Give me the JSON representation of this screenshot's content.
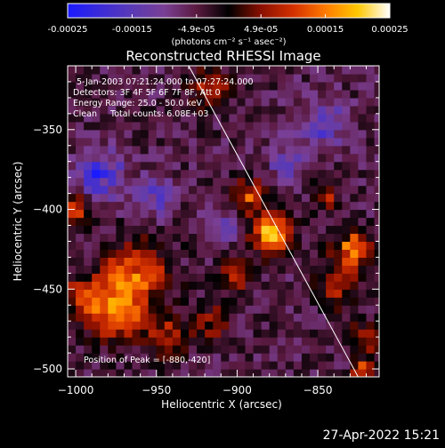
{
  "colorbar": {
    "tick_labels": [
      "-0.00025",
      "-0.00015",
      "-4.9e-05",
      "4.9e-05",
      "0.00015",
      "0.00025"
    ],
    "units": "(photons cm⁻² s⁻¹ asec⁻²)",
    "colors": [
      "#1a1aff",
      "#3b2bd8",
      "#5a3ab5",
      "#7a3f94",
      "#5a1a40",
      "#000000",
      "#8a1000",
      "#d43000",
      "#ff7a00",
      "#ffc800",
      "#ffffff"
    ]
  },
  "annotations": {
    "line1": "5-Jan-2003 07:21:24.000 to 07:27:24.000",
    "line2": "Detectors: 3F 4F 5F 6F 7F 8F, Att 0",
    "line3": "Energy Range: 25.0 - 50.0 keV",
    "line4": "Clean     Total counts: 6.08E+03",
    "peak": "Position of Peak = [-880,-420]"
  },
  "timestamp": "27-Apr-2022 15:21",
  "chart_data": {
    "type": "heatmap",
    "title": "Reconstructed RHESSI Image",
    "xlabel": "Heliocentric X (arcsec)",
    "ylabel": "Heliocentric Y (arcsec)",
    "xlim": [
      -1005,
      -812
    ],
    "ylim": [
      -505,
      -310
    ],
    "x_ticks": [
      -1000,
      -950,
      -900,
      -850
    ],
    "y_ticks": [
      -350,
      -400,
      -450,
      -500
    ],
    "x_tick_labels": [
      "−1000",
      "−950",
      "−900",
      "−850"
    ],
    "y_tick_labels": [
      "−350",
      "−400",
      "−450",
      "−500"
    ],
    "value_range": [
      -0.00025,
      0.00025
    ],
    "grid": false,
    "limb_line": [
      [
        -930,
        -310
      ],
      [
        -825,
        -505
      ]
    ],
    "peak_position": [
      -880,
      -420
    ],
    "bright_regions": [
      {
        "x": -878,
        "y": -415,
        "peak": 0.00025,
        "radius": 12
      },
      {
        "x": -892,
        "y": -392,
        "peak": 0.00018,
        "radius": 10
      },
      {
        "x": -900,
        "y": -440,
        "peak": 0.00015,
        "radius": 10
      },
      {
        "x": -963,
        "y": -440,
        "peak": 0.00018,
        "radius": 20
      },
      {
        "x": -975,
        "y": -465,
        "peak": 0.00016,
        "radius": 18
      },
      {
        "x": -995,
        "y": -455,
        "peak": 0.00013,
        "radius": 14
      },
      {
        "x": -943,
        "y": -480,
        "peak": 0.00012,
        "radius": 13
      },
      {
        "x": -915,
        "y": -470,
        "peak": 0.0001,
        "radius": 12
      },
      {
        "x": -828,
        "y": -425,
        "peak": 0.00018,
        "radius": 12
      },
      {
        "x": -838,
        "y": -448,
        "peak": 0.00014,
        "radius": 12
      },
      {
        "x": -820,
        "y": -480,
        "peak": 0.00013,
        "radius": 10
      },
      {
        "x": -822,
        "y": -500,
        "peak": 0.0002,
        "radius": 6
      },
      {
        "x": -918,
        "y": -322,
        "peak": 0.00012,
        "radius": 14
      },
      {
        "x": -1002,
        "y": -400,
        "peak": 0.00015,
        "radius": 10
      },
      {
        "x": -845,
        "y": -392,
        "peak": 0.00011,
        "radius": 8
      },
      {
        "x": -855,
        "y": -340,
        "peak": 8e-05,
        "radius": 8
      }
    ],
    "dark_regions": [
      {
        "x": -985,
        "y": -378,
        "peak": -0.00015,
        "radius": 14
      },
      {
        "x": -850,
        "y": -345,
        "peak": -0.00012,
        "radius": 16
      },
      {
        "x": -952,
        "y": -392,
        "peak": -0.0001,
        "radius": 12
      },
      {
        "x": -908,
        "y": -410,
        "peak": -9e-05,
        "radius": 10
      },
      {
        "x": -870,
        "y": -372,
        "peak": -0.0001,
        "radius": 10
      }
    ]
  }
}
